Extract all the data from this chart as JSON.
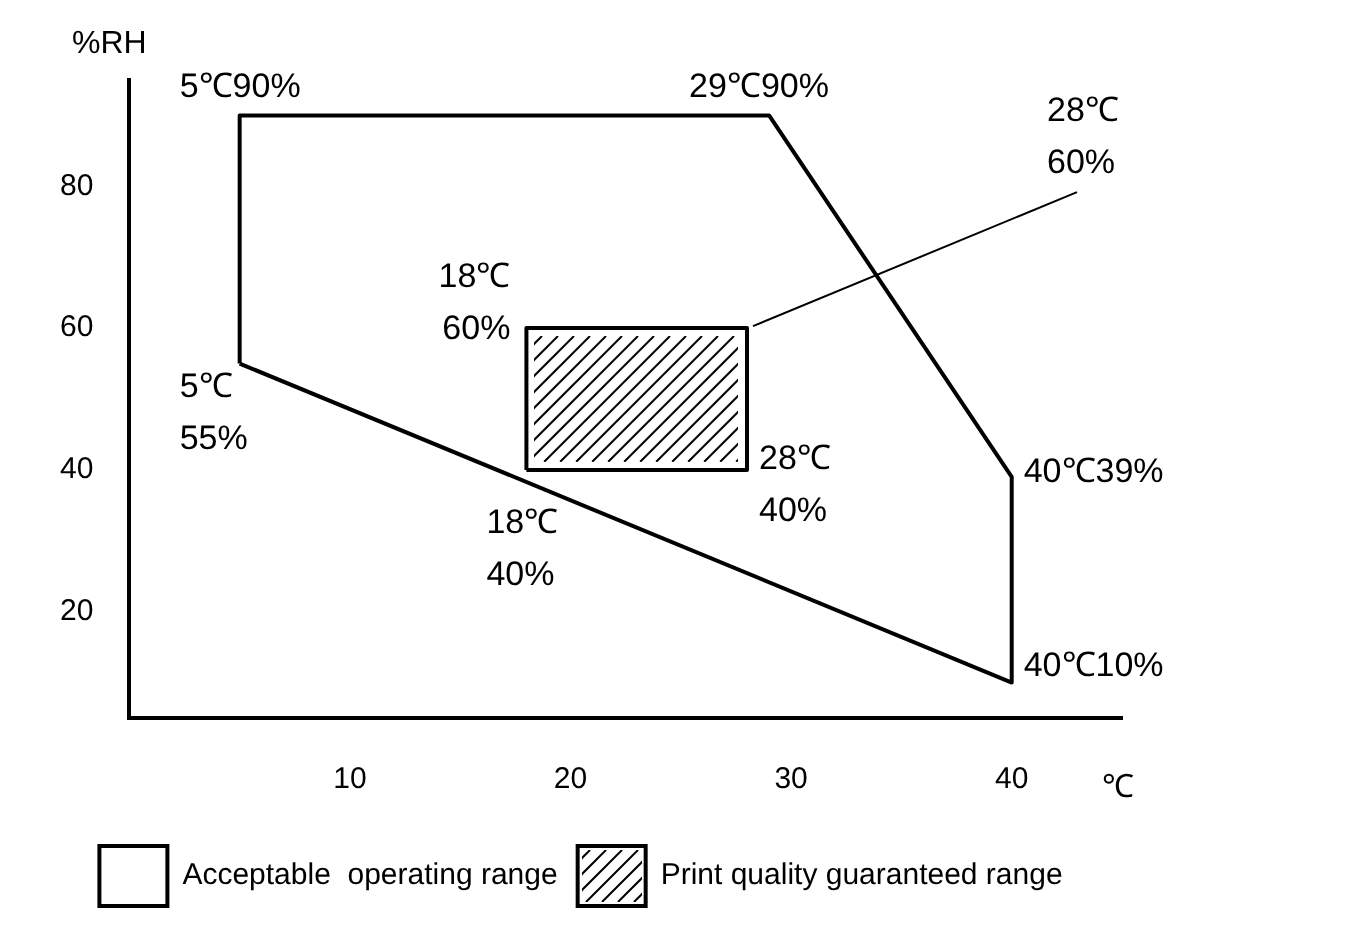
{
  "chart_data": {
    "type": "line",
    "xlabel": "℃",
    "ylabel": "%RH",
    "xlim": [
      0,
      45
    ],
    "ylim": [
      5,
      95
    ],
    "xticks": [
      10,
      20,
      30,
      40
    ],
    "yticks": [
      20,
      40,
      60,
      80
    ],
    "grid": false,
    "legend": "bottom",
    "marker": "none",
    "line_style": "solid",
    "series": [
      {
        "name": "Acceptable  operating range",
        "type": "line",
        "color": "#000000",
        "x": [
          5,
          5,
          29,
          40,
          40
        ],
        "values": [
          55,
          90,
          90,
          39,
          10
        ]
      },
      {
        "type": "line",
        "color": "#000000",
        "x": [
          5,
          40
        ],
        "values": [
          55,
          10
        ]
      },
      {
        "name": "Print quality guaranteed range",
        "type": "line",
        "color": "#000000",
        "x": [
          18,
          18,
          28,
          28
        ],
        "values": [
          40,
          60,
          60,
          40
        ]
      },
      {
        "type": "line",
        "color": "#000000",
        "x": [
          18,
          28
        ],
        "values": [
          40,
          40
        ]
      }
    ],
    "annotations": [
      {
        "text": "5℃90%",
        "x": 5,
        "y": 90
      },
      {
        "text": "29℃90%",
        "x": 29,
        "y": 90
      },
      {
        "text": "28℃\n60%",
        "x": 28,
        "y": 60
      },
      {
        "text": "40℃39%",
        "x": 40,
        "y": 39
      },
      {
        "text": "40℃10%",
        "x": 40,
        "y": 10
      },
      {
        "text": "5℃\n55%",
        "x": 5,
        "y": 55
      },
      {
        "text": "18℃\n60%",
        "x": 18,
        "y": 60
      },
      {
        "text": "28℃\n40%",
        "x": 28,
        "y": 40
      },
      {
        "text": "18℃\n40%",
        "x": 18,
        "y": 40
      }
    ]
  }
}
